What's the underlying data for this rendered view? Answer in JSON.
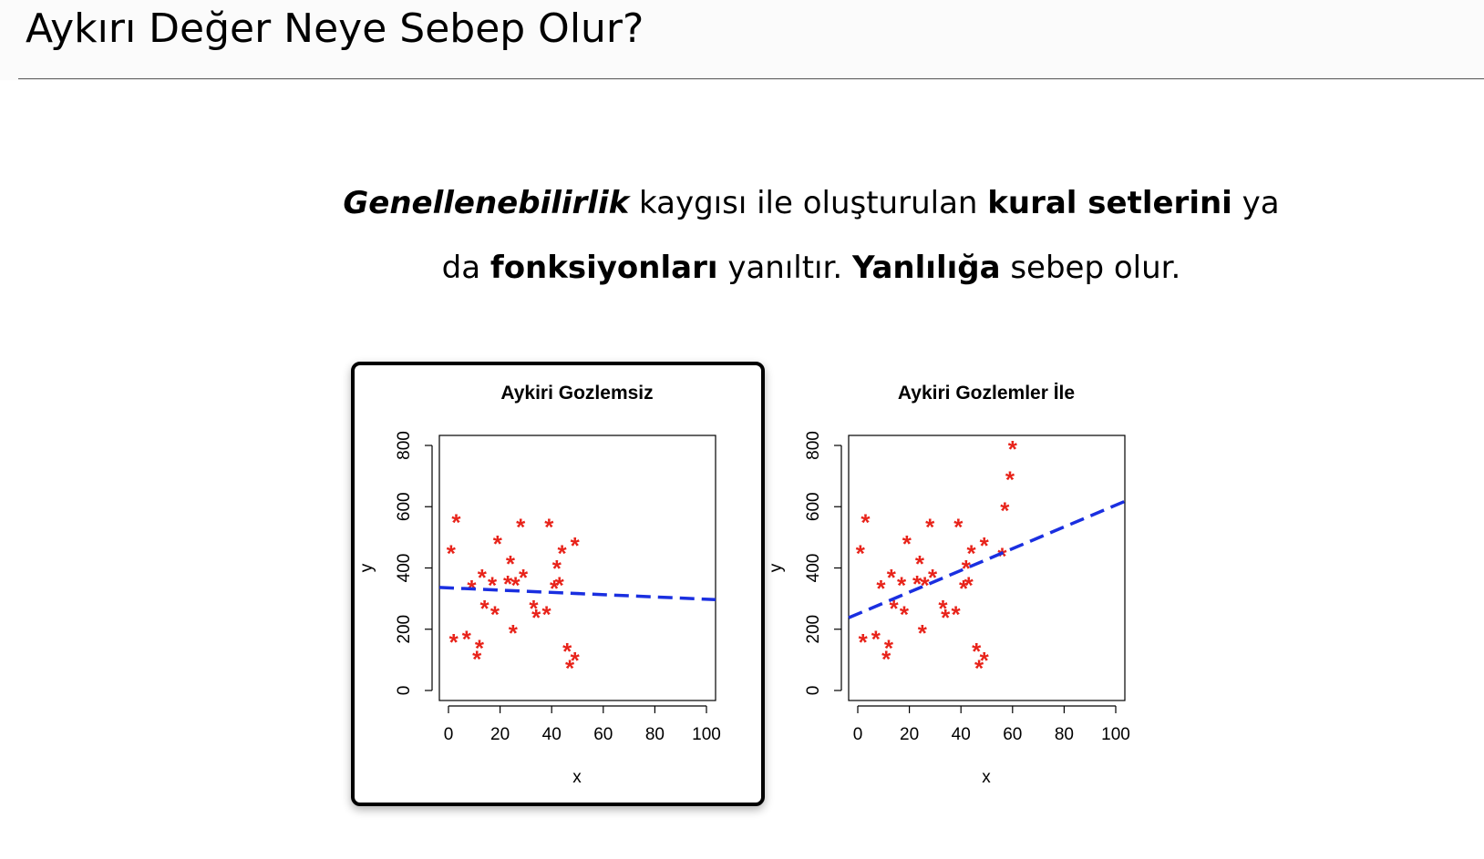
{
  "slide": {
    "title": "Aykırı Değer Neye Sebep Olur?",
    "body": {
      "line1": [
        {
          "text": "Genellenebilirlik",
          "style": "bold-italic"
        },
        {
          "text": " kaygısı ile oluşturulan ",
          "style": "normal"
        },
        {
          "text": "kural setlerini",
          "style": "bold"
        },
        {
          "text": " ya",
          "style": "normal"
        }
      ],
      "line2": [
        {
          "text": "da ",
          "style": "normal"
        },
        {
          "text": "fonksiyonları",
          "style": "bold"
        },
        {
          "text": " yanıltır. ",
          "style": "normal"
        },
        {
          "text": "Yanlılığa",
          "style": "bold"
        },
        {
          "text": " sebep olur.",
          "style": "normal"
        }
      ]
    }
  },
  "chart_data": [
    {
      "type": "scatter",
      "title": "Aykiri Gozlemsiz",
      "xlabel": "x",
      "ylabel": "y",
      "xlim": [
        0,
        100
      ],
      "ylim": [
        0,
        800
      ],
      "xticks": [
        0,
        20,
        40,
        60,
        80,
        100
      ],
      "yticks": [
        0,
        200,
        400,
        600,
        800
      ],
      "marker": "*",
      "point_color": "#e8231a",
      "line_color": "#1a2fe0",
      "highlighted": true,
      "points": [
        [
          1,
          460
        ],
        [
          2,
          170
        ],
        [
          3,
          560
        ],
        [
          7,
          180
        ],
        [
          9,
          345
        ],
        [
          11,
          115
        ],
        [
          12,
          150
        ],
        [
          13,
          380
        ],
        [
          14,
          280
        ],
        [
          17,
          355
        ],
        [
          18,
          260
        ],
        [
          19,
          490
        ],
        [
          23,
          360
        ],
        [
          24,
          425
        ],
        [
          25,
          200
        ],
        [
          26,
          355
        ],
        [
          28,
          545
        ],
        [
          29,
          380
        ],
        [
          33,
          280
        ],
        [
          34,
          250
        ],
        [
          38,
          260
        ],
        [
          39,
          545
        ],
        [
          41,
          345
        ],
        [
          42,
          410
        ],
        [
          43,
          355
        ],
        [
          44,
          460
        ],
        [
          46,
          140
        ],
        [
          47,
          85
        ],
        [
          49,
          110
        ],
        [
          49,
          485
        ]
      ],
      "fit_line": {
        "x": [
          0,
          100
        ],
        "y": [
          335,
          298
        ],
        "style": "dashed"
      }
    },
    {
      "type": "scatter",
      "title": "Aykiri Gozlemler İle",
      "xlabel": "x",
      "ylabel": "y",
      "xlim": [
        0,
        100
      ],
      "ylim": [
        0,
        800
      ],
      "xticks": [
        0,
        20,
        40,
        60,
        80,
        100
      ],
      "yticks": [
        0,
        200,
        400,
        600,
        800
      ],
      "marker": "*",
      "point_color": "#e8231a",
      "line_color": "#1a2fe0",
      "highlighted": false,
      "points": [
        [
          1,
          460
        ],
        [
          2,
          170
        ],
        [
          3,
          560
        ],
        [
          7,
          180
        ],
        [
          9,
          345
        ],
        [
          11,
          115
        ],
        [
          12,
          150
        ],
        [
          13,
          380
        ],
        [
          14,
          280
        ],
        [
          17,
          355
        ],
        [
          18,
          260
        ],
        [
          19,
          490
        ],
        [
          23,
          360
        ],
        [
          24,
          425
        ],
        [
          25,
          200
        ],
        [
          26,
          355
        ],
        [
          28,
          545
        ],
        [
          29,
          380
        ],
        [
          33,
          280
        ],
        [
          34,
          250
        ],
        [
          38,
          260
        ],
        [
          39,
          545
        ],
        [
          41,
          345
        ],
        [
          42,
          410
        ],
        [
          43,
          355
        ],
        [
          44,
          460
        ],
        [
          46,
          140
        ],
        [
          47,
          85
        ],
        [
          49,
          110
        ],
        [
          49,
          485
        ],
        [
          56,
          450
        ],
        [
          57,
          600
        ],
        [
          59,
          700
        ],
        [
          60,
          800
        ]
      ],
      "fit_line": {
        "x": [
          0,
          100
        ],
        "y": [
          250,
          605
        ],
        "style": "dashed"
      }
    }
  ]
}
